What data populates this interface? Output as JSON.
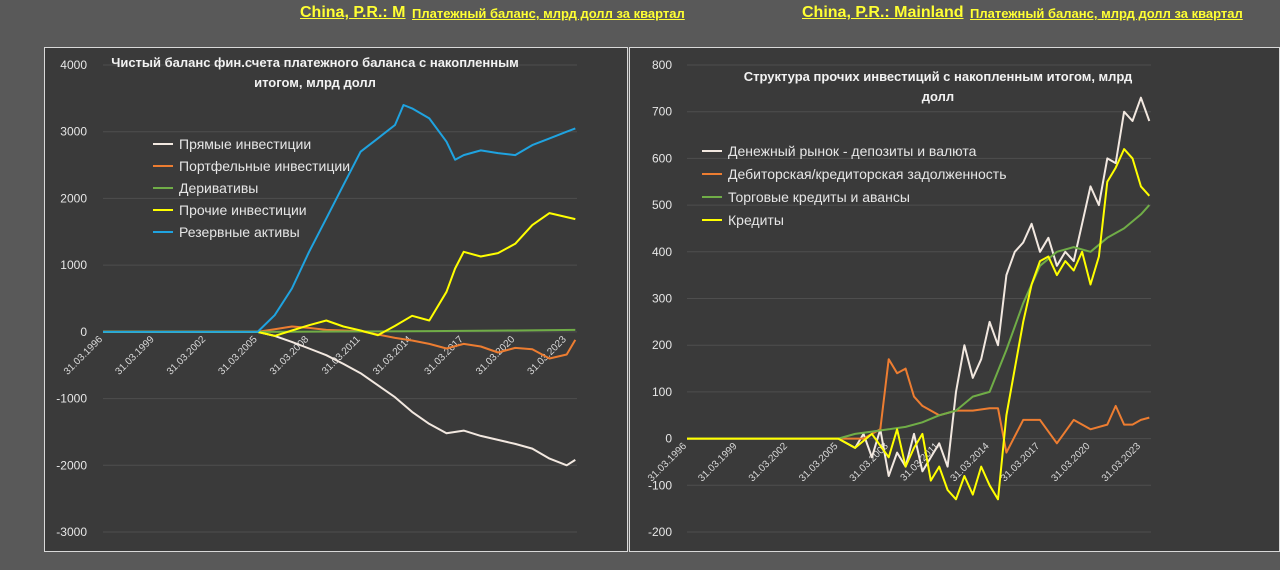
{
  "header": {
    "left_country": "China, P.R.: M",
    "left_subtitle": "Платежный баланс, млрд долл за квартал",
    "right_country": "China, P.R.: Mainland",
    "right_subtitle": "Платежный баланс, млрд долл за квартал"
  },
  "colors": {
    "background": "#595959",
    "panel": "#3a3a3a",
    "header_text": "#ffff33",
    "white_series": "#f2e8e0",
    "orange": "#ed7d31",
    "green": "#70ad47",
    "yellow": "#ffff00",
    "blue": "#1fa3e0"
  },
  "chart_data": [
    {
      "type": "line",
      "title": "Чистый баланс фин.счета платежного баланса с накопленным итогом, млрд долл",
      "ylim": [
        -3000,
        4000
      ],
      "y_ticks": [
        4000,
        3000,
        2000,
        1000,
        0,
        -1000,
        -2000,
        -3000
      ],
      "x_tick_labels": [
        "31.03.1996",
        "31.03.1999",
        "31.03.2002",
        "31.03.2005",
        "31.03.2008",
        "31.03.2011",
        "31.03.2014",
        "31.03.2017",
        "31.03.2020",
        "31.03.2023"
      ],
      "x_years": [
        1996,
        1999,
        2002,
        2005,
        2008,
        2011,
        2014,
        2017,
        2020,
        2023
      ],
      "xlim": [
        1996,
        2023.6
      ],
      "legend": [
        "Прямые инвестиции",
        "Портфельные инвестиции",
        "Деривативы",
        "Прочие инвестиции",
        "Резервные активы"
      ],
      "series": [
        {
          "name": "Прямые инвестиции",
          "color": "#f2e8e0",
          "x": [
            1996,
            2005,
            2006,
            2007,
            2008,
            2009,
            2010,
            2011,
            2012,
            2013,
            2014,
            2015,
            2016,
            2017,
            2018,
            2019,
            2020,
            2021,
            2022,
            2023,
            2023.5
          ],
          "y": [
            0,
            0,
            -60,
            -150,
            -250,
            -350,
            -480,
            -620,
            -800,
            -980,
            -1200,
            -1380,
            -1520,
            -1480,
            -1560,
            -1620,
            -1680,
            -1750,
            -1900,
            -2000,
            -1920
          ]
        },
        {
          "name": "Портфельные инвестиции",
          "color": "#ed7d31",
          "x": [
            1996,
            2005,
            2006,
            2007,
            2008,
            2009,
            2010,
            2011,
            2012,
            2013,
            2014,
            2015,
            2016,
            2017,
            2018,
            2019,
            2020,
            2021,
            2022,
            2023,
            2023.5
          ],
          "y": [
            0,
            0,
            40,
            80,
            60,
            30,
            20,
            10,
            -40,
            -90,
            -130,
            -180,
            -250,
            -180,
            -220,
            -310,
            -240,
            -260,
            -400,
            -340,
            -120
          ]
        },
        {
          "name": "Деривативы",
          "color": "#70ad47",
          "x": [
            1996,
            2005,
            2010,
            2015,
            2020,
            2023.5
          ],
          "y": [
            0,
            0,
            5,
            12,
            20,
            30
          ]
        },
        {
          "name": "Прочие инвестиции",
          "color": "#ffff00",
          "x": [
            1996,
            2005,
            2006,
            2007,
            2008,
            2009,
            2010,
            2011,
            2012,
            2013,
            2014,
            2015,
            2016,
            2016.5,
            2017,
            2018,
            2019,
            2020,
            2021,
            2022,
            2023,
            2023.5
          ],
          "y": [
            0,
            0,
            -60,
            20,
            100,
            170,
            80,
            20,
            -50,
            90,
            240,
            170,
            600,
            950,
            1200,
            1130,
            1180,
            1320,
            1600,
            1780,
            1720,
            1690
          ]
        },
        {
          "name": "Резервные активы",
          "color": "#1fa3e0",
          "x": [
            1996,
            2005,
            2006,
            2007,
            2008,
            2009,
            2010,
            2011,
            2012,
            2013,
            2013.5,
            2014,
            2015,
            2016,
            2016.5,
            2017,
            2018,
            2019,
            2020,
            2021,
            2022,
            2023,
            2023.5
          ],
          "y": [
            0,
            0,
            250,
            650,
            1200,
            1700,
            2200,
            2700,
            2900,
            3100,
            3400,
            3350,
            3200,
            2850,
            2580,
            2650,
            2720,
            2680,
            2650,
            2800,
            2900,
            3000,
            3050
          ]
        }
      ]
    },
    {
      "type": "line",
      "title": "Структура прочих инвестиций с накопленным итогом, млрд долл",
      "ylim": [
        -200,
        800
      ],
      "y_ticks": [
        800,
        700,
        600,
        500,
        400,
        300,
        200,
        100,
        0,
        -100,
        -200
      ],
      "x_tick_labels": [
        "31.03.1996",
        "31.03.1999",
        "31.03.2002",
        "31.03.2005",
        "31.03.2008",
        "31.03.2011",
        "31.03.2014",
        "31.03.2017",
        "31.03.2020",
        "31.03.2023"
      ],
      "x_years": [
        1996,
        1999,
        2002,
        2005,
        2008,
        2011,
        2014,
        2017,
        2020,
        2023
      ],
      "xlim": [
        1996,
        2023.6
      ],
      "legend": [
        "Денежный рынок - депозиты и валюта",
        "Дебиторская/кредиторская задолженность",
        "Торговые кредиты и авансы",
        "Кредиты"
      ],
      "series": [
        {
          "name": "Денежный рынок - депозиты и валюта",
          "color": "#f2e8e0",
          "x": [
            1996,
            2005,
            2006,
            2006.5,
            2007,
            2007.5,
            2008,
            2008.5,
            2009,
            2009.5,
            2010,
            2010.5,
            2011,
            2011.5,
            2012,
            2012.5,
            2013,
            2013.5,
            2014,
            2014.5,
            2015,
            2015.5,
            2016,
            2016.5,
            2017,
            2017.5,
            2018,
            2018.5,
            2019,
            2019.5,
            2020,
            2020.5,
            2021,
            2021.5,
            2022,
            2022.5,
            2023,
            2023.5
          ],
          "y": [
            0,
            0,
            -20,
            10,
            -40,
            20,
            -80,
            -30,
            -60,
            10,
            -70,
            -40,
            -10,
            -60,
            100,
            200,
            130,
            170,
            250,
            200,
            350,
            400,
            420,
            460,
            400,
            430,
            370,
            400,
            380,
            460,
            540,
            500,
            600,
            590,
            700,
            680,
            730,
            680
          ]
        },
        {
          "name": "Дебиторская/кредиторская задолженность",
          "color": "#ed7d31",
          "x": [
            1996,
            2006.5,
            2007,
            2007.5,
            2008,
            2008.5,
            2009,
            2009.5,
            2010,
            2011,
            2012,
            2013,
            2014,
            2014.5,
            2015,
            2016,
            2016.5,
            2017,
            2018,
            2019,
            2020,
            2021,
            2021.5,
            2022,
            2022.5,
            2023,
            2023.5
          ],
          "y": [
            0,
            0,
            10,
            20,
            170,
            140,
            150,
            90,
            70,
            50,
            60,
            60,
            65,
            65,
            -30,
            40,
            40,
            40,
            -10,
            40,
            20,
            30,
            70,
            30,
            30,
            40,
            45
          ]
        },
        {
          "name": "Торговые кредиты и авансы",
          "color": "#70ad47",
          "x": [
            1996,
            2005,
            2006,
            2007,
            2008,
            2009,
            2010,
            2011,
            2012,
            2013,
            2014,
            2015,
            2016,
            2017,
            2018,
            2019,
            2020,
            2021,
            2022,
            2023,
            2023.5
          ],
          "y": [
            0,
            0,
            10,
            15,
            20,
            25,
            35,
            50,
            60,
            90,
            100,
            190,
            290,
            370,
            400,
            410,
            400,
            430,
            450,
            480,
            500
          ]
        },
        {
          "name": "Кредиты",
          "color": "#ffff00",
          "x": [
            1996,
            2005,
            2006,
            2007,
            2008,
            2008.5,
            2009,
            2009.5,
            2010,
            2010.5,
            2011,
            2011.5,
            2012,
            2012.5,
            2013,
            2013.5,
            2014,
            2014.5,
            2015,
            2015.5,
            2016,
            2016.5,
            2017,
            2017.5,
            2018,
            2018.5,
            2019,
            2019.5,
            2020,
            2020.5,
            2021,
            2021.5,
            2022,
            2022.5,
            2023,
            2023.5
          ],
          "y": [
            0,
            0,
            -20,
            10,
            -40,
            20,
            -60,
            -20,
            10,
            -90,
            -60,
            -110,
            -130,
            -80,
            -120,
            -60,
            -100,
            -130,
            50,
            150,
            250,
            330,
            380,
            390,
            350,
            380,
            360,
            400,
            330,
            390,
            550,
            580,
            620,
            600,
            540,
            520
          ]
        }
      ]
    }
  ]
}
